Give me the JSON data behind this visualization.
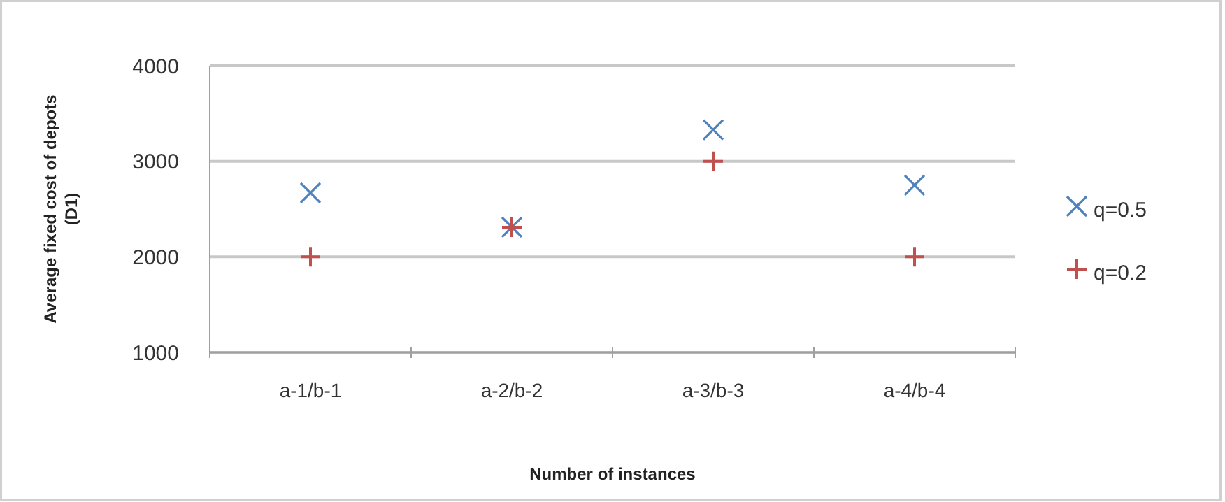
{
  "chart_data": {
    "type": "scatter",
    "xlabel": "Number of instances",
    "ylabel": "Average fixed cost of depots\n(D1)",
    "categories": [
      "a-1/b-1",
      "a-2/b-2",
      "a-3/b-3",
      "a-4/b-4"
    ],
    "ylim": [
      1000,
      4000
    ],
    "yticks": [
      1000,
      2000,
      3000,
      4000
    ],
    "grid": "y",
    "legend": "right",
    "series": [
      {
        "name": "q=0.5",
        "color": "#4f81bd",
        "marker": "x",
        "values": [
          2670,
          2310,
          3330,
          2750
        ]
      },
      {
        "name": "q=0.2",
        "color": "#c0504d",
        "marker": "cross",
        "values": [
          2000,
          2310,
          3000,
          2000
        ]
      }
    ]
  }
}
